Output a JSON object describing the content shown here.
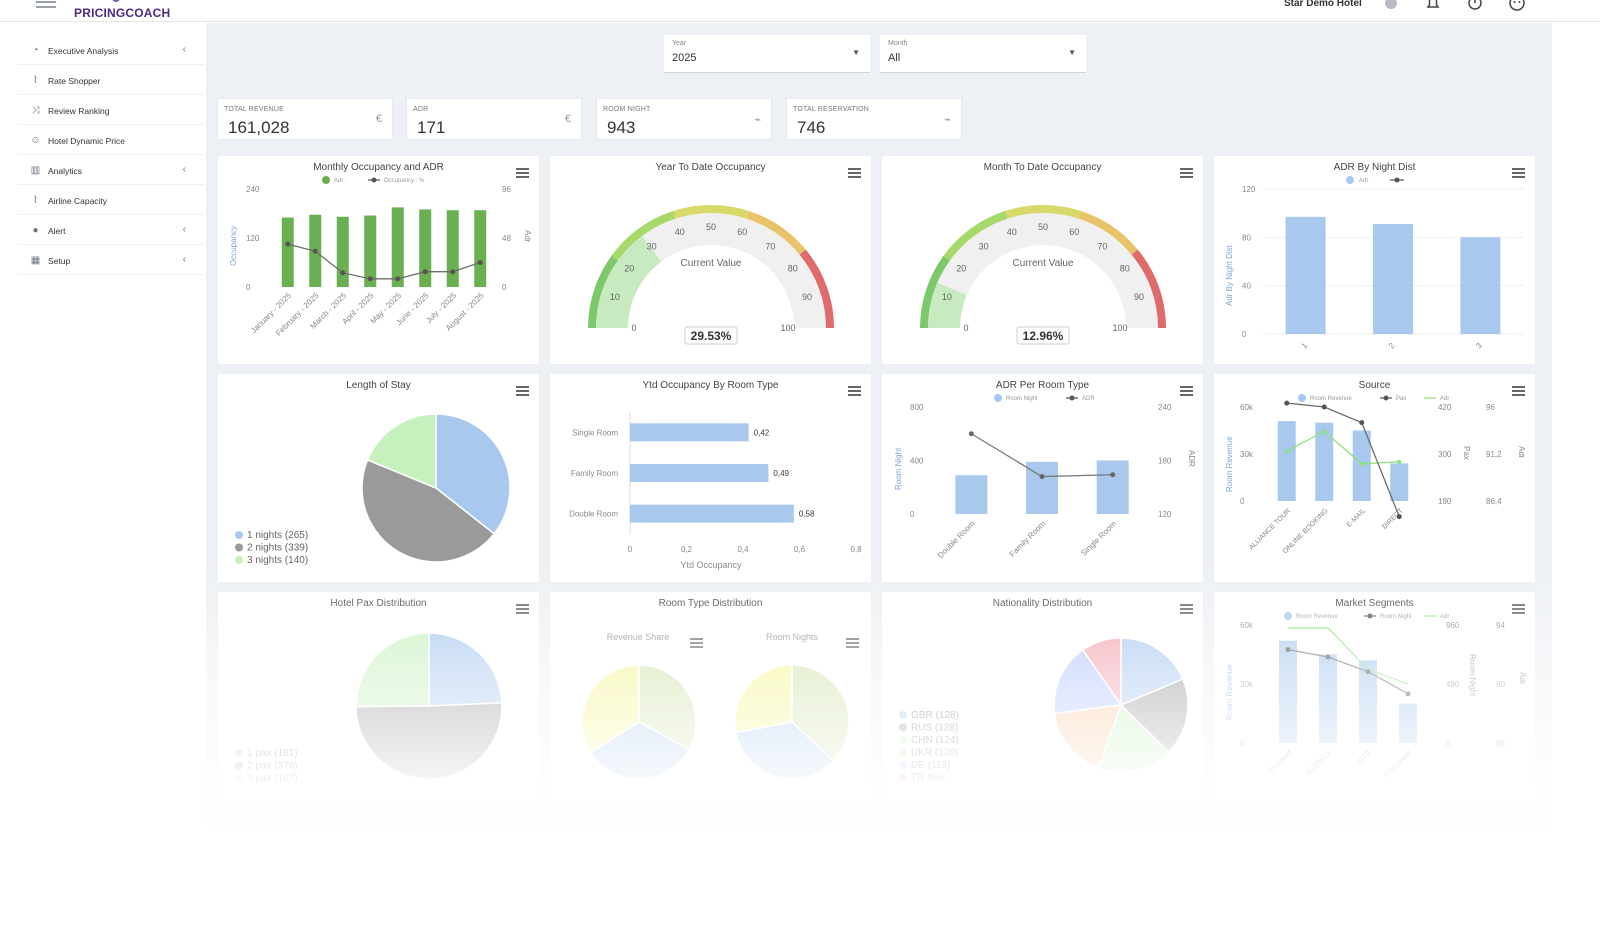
{
  "app": {
    "logo": "PRICINGCOACH",
    "hotel": "Star Demo Hotel"
  },
  "icons": {
    "menu": "hamburger-icon",
    "hotel": "hotel-icon",
    "bell": "bell-icon",
    "power": "power-icon",
    "user": "user-face-icon"
  },
  "sidebar": {
    "items": [
      {
        "label": "Executive Analysis",
        "icon": "pie-icon",
        "chevron": true
      },
      {
        "label": "Rate Shopper",
        "icon": "chart-line-icon",
        "chevron": false
      },
      {
        "label": "Review Ranking",
        "icon": "shuffle-icon",
        "chevron": false
      },
      {
        "label": "Hotel Dynamic Price",
        "icon": "user-icon",
        "chevron": false
      },
      {
        "label": "Analytics",
        "icon": "bar-chart-icon",
        "chevron": true
      },
      {
        "label": "Airline Capacity",
        "icon": "chart-line-icon",
        "chevron": false
      },
      {
        "label": "Alert",
        "icon": "alert-icon",
        "chevron": true
      },
      {
        "label": "Setup",
        "icon": "table-icon",
        "chevron": true
      }
    ]
  },
  "filters": {
    "year": {
      "caption": "Year",
      "value": "2025"
    },
    "month": {
      "caption": "Month",
      "value": "All"
    }
  },
  "kpis": [
    {
      "caption": "TOTAL REVENUE",
      "value": "161,028",
      "icon": "€"
    },
    {
      "caption": "ADR",
      "value": "171",
      "icon": "€"
    },
    {
      "caption": "ROOM NIGHT",
      "value": "943",
      "icon": "chart-icon"
    },
    {
      "caption": "TOTAL RESERVATION",
      "value": "746",
      "icon": "chart-icon"
    }
  ],
  "cards": {
    "monthly": {
      "title": "Monthly Occupancy and ADR",
      "legend": [
        "Adr :",
        "Occupancy : %"
      ],
      "ylabel_left": "Occupancy",
      "ylabel_right": "Adr",
      "left_ticks": [
        "240",
        "120",
        "0"
      ],
      "right_ticks": [
        "96",
        "48",
        "0"
      ]
    },
    "ytd": {
      "title": "Year To Date Occupancy",
      "center": "Current Value",
      "value": "29.53%"
    },
    "mtd": {
      "title": "Month To Date Occupancy",
      "center": "Current Value",
      "value": "12.96%"
    },
    "adrnight": {
      "title": "ADR By Night Dist",
      "legend": [
        "Adr",
        ""
      ],
      "ylabel": "Adr By Night Dist",
      "ticks": [
        "120",
        "80",
        "40",
        "0"
      ],
      "cats": [
        "1",
        "2",
        "3"
      ]
    },
    "los": {
      "title": "Length of Stay",
      "legend": [
        "1 nights (265)",
        "2 nights (339)",
        "3 nights (140)"
      ]
    },
    "ytdroom": {
      "title": "Ytd Occupancy By Room Type",
      "xlabel": "Ytd Occupancy",
      "ticks": [
        "0",
        "0,2",
        "0,4",
        "0,6",
        "0,8"
      ]
    },
    "adrroom": {
      "title": "ADR Per Room Type",
      "legend": [
        "Room Night",
        "ADR"
      ],
      "ylabel_left": "Room Night",
      "ylabel_right": "ADR",
      "left_ticks": [
        "800",
        "400",
        "0"
      ],
      "right_ticks": [
        "240",
        "180",
        "120"
      ]
    },
    "source": {
      "title": "Source",
      "legend": [
        "Room Revenue",
        "Pax",
        "Adr"
      ],
      "ylabel_left": "Room Revenue",
      "ylabel_mid": "Pax",
      "ylabel_right": "Adr",
      "left_ticks": [
        "60k",
        "30k",
        "0"
      ],
      "mid_ticks": [
        "420",
        "300",
        "180"
      ],
      "right_ticks": [
        "96",
        "91,2",
        "86,4"
      ]
    },
    "pax": {
      "title": "Hotel Pax Distribution",
      "legend": [
        "1 pax (181)",
        "2 pax (376)",
        "3 pax (187)"
      ]
    },
    "roomtype": {
      "title": "Room Type Distribution",
      "sub1": "Revenue Share",
      "sub2": "Room Nights"
    },
    "nationality": {
      "title": "Nationality Distribution",
      "legend": [
        "GBR (128)",
        "RUS (128)",
        "CHN (124)",
        "UKR (120)",
        "DE (119)",
        "TR (66)"
      ]
    },
    "market": {
      "title": "Market Segments",
      "legend": [
        "Room Revenue",
        "Room Night",
        "Adr"
      ],
      "ylabel_left": "Room Revenue",
      "ylabel_mid": "Room Night",
      "ylabel_right": "Adr",
      "left_ticks": [
        "60k",
        "30k",
        "0"
      ],
      "mid_ticks": [
        "960",
        "480",
        "0"
      ],
      "right_ticks": [
        "94",
        "90",
        "86"
      ]
    }
  },
  "colors": {
    "green": "#6aaf50",
    "blue": "#a8c8ee",
    "gray": "#8d8d8d",
    "lightgreen": "#c6f0bd",
    "accent": "#4b2a86"
  },
  "chart_data": [
    {
      "type": "bar",
      "title": "Monthly Occupancy and ADR",
      "categories": [
        "January - 2025",
        "February - 2025",
        "March - 2025",
        "April - 2025",
        "May - 2025",
        "June - 2025",
        "July - 2025",
        "August - 2025"
      ],
      "series": [
        {
          "name": "Adr",
          "type": "bar",
          "values": [
            170,
            177,
            172,
            175,
            195,
            190,
            188,
            188
          ]
        },
        {
          "name": "Occupancy",
          "type": "line",
          "values": [
            42,
            35,
            14,
            8,
            8,
            15,
            15,
            24
          ]
        }
      ],
      "ylabel": "Occupancy",
      "ylim": [
        0,
        240
      ],
      "y2label": "Adr",
      "y2lim": [
        0,
        96
      ]
    },
    {
      "type": "gauge",
      "title": "Year To Date Occupancy",
      "value": 29.53,
      "range": [
        0,
        100
      ],
      "ticks": [
        0,
        10,
        20,
        30,
        40,
        50,
        60,
        70,
        80,
        90,
        100
      ]
    },
    {
      "type": "gauge",
      "title": "Month To Date Occupancy",
      "value": 12.96,
      "range": [
        0,
        100
      ],
      "ticks": [
        0,
        10,
        20,
        30,
        40,
        50,
        60,
        70,
        80,
        90,
        100
      ]
    },
    {
      "type": "bar",
      "title": "ADR By Night Dist",
      "categories": [
        "1",
        "2",
        "3"
      ],
      "values": [
        97,
        91,
        80
      ],
      "ylim": [
        0,
        120
      ]
    },
    {
      "type": "pie",
      "title": "Length of Stay",
      "labels": [
        "1 nights",
        "2 nights",
        "3 nights"
      ],
      "values": [
        265,
        339,
        140
      ]
    },
    {
      "type": "bar",
      "title": "Ytd Occupancy By Room Type",
      "orientation": "horizontal",
      "categories": [
        "Single Room",
        "Family Room",
        "Double Room"
      ],
      "values": [
        0.42,
        0.49,
        0.58
      ],
      "xlim": [
        0,
        0.8
      ]
    },
    {
      "type": "bar",
      "title": "ADR Per Room Type",
      "categories": [
        "Double Room",
        "Family Room",
        "Single Room"
      ],
      "series": [
        {
          "name": "Room Night",
          "type": "bar",
          "values": [
            290,
            390,
            400
          ]
        },
        {
          "name": "ADR",
          "type": "line",
          "values": [
            210,
            162,
            164
          ]
        }
      ],
      "ylim": [
        0,
        800
      ],
      "y2lim": [
        120,
        240
      ]
    },
    {
      "type": "bar",
      "title": "Source",
      "categories": [
        "ALLIANCE TOUR",
        "ONLINE BOOKING",
        "E-MAIL",
        "DIRECT"
      ],
      "series": [
        {
          "name": "Room Revenue",
          "type": "bar",
          "values": [
            51000,
            50000,
            45000,
            24000
          ]
        },
        {
          "name": "Pax",
          "type": "line",
          "values": [
            430,
            420,
            380,
            140
          ]
        },
        {
          "name": "Adr",
          "type": "line",
          "values": [
            91.5,
            93.5,
            90.2,
            90.4
          ]
        }
      ],
      "ylim": [
        0,
        60000
      ],
      "y2lim": [
        180,
        420
      ],
      "y3lim": [
        86.4,
        96
      ]
    },
    {
      "type": "pie",
      "title": "Hotel Pax Distribution",
      "labels": [
        "1 pax",
        "2 pax",
        "3 pax"
      ],
      "values": [
        181,
        376,
        187
      ]
    },
    {
      "type": "pie",
      "title": "Revenue Share",
      "values": [
        33,
        33,
        34
      ]
    },
    {
      "type": "pie",
      "title": "Room Nights",
      "values": [
        37,
        35,
        28
      ]
    },
    {
      "type": "pie",
      "title": "Nationality Distribution",
      "labels": [
        "GBR",
        "RUS",
        "CHN",
        "UKR",
        "DE",
        "TR"
      ],
      "values": [
        128,
        128,
        124,
        120,
        119,
        66
      ]
    },
    {
      "type": "bar",
      "title": "Market Segments",
      "categories": [
        "Prepaid",
        "AGENCY",
        "OTA",
        "Corporate"
      ],
      "series": [
        {
          "name": "Room Revenue",
          "type": "bar",
          "values": [
            52000,
            45000,
            42000,
            20000
          ]
        },
        {
          "name": "Room Night",
          "type": "line",
          "values": [
            760,
            700,
            580,
            400
          ]
        },
        {
          "name": "Adr",
          "type": "line",
          "values": [
            93.8,
            93.8,
            91,
            90
          ]
        }
      ],
      "ylim": [
        0,
        60000
      ],
      "y2lim": [
        0,
        960
      ],
      "y3lim": [
        86,
        94
      ]
    }
  ]
}
